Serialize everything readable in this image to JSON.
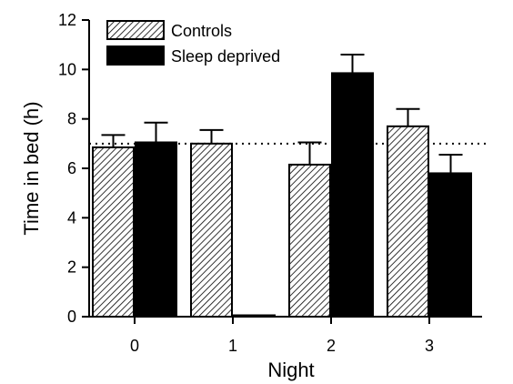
{
  "chart_data": {
    "type": "bar",
    "xlabel": "Night",
    "ylabel": "Time in bed (h)",
    "categories": [
      "0",
      "1",
      "2",
      "3"
    ],
    "ylim": [
      0,
      12
    ],
    "yticks": [
      0,
      2,
      4,
      6,
      8,
      10,
      12
    ],
    "reference_line": {
      "value": 7,
      "style": "dotted"
    },
    "legend_position": "top-left",
    "series": [
      {
        "name": "Controls",
        "pattern": "diagonal-hatch",
        "values": [
          6.85,
          7.0,
          6.15,
          7.7
        ],
        "errors": [
          0.5,
          0.55,
          0.9,
          0.7
        ]
      },
      {
        "name": "Sleep deprived",
        "pattern": "solid",
        "color": "#000000",
        "values": [
          7.05,
          0.05,
          9.85,
          5.8
        ],
        "errors": [
          0.8,
          0.0,
          0.75,
          0.75
        ]
      }
    ]
  }
}
